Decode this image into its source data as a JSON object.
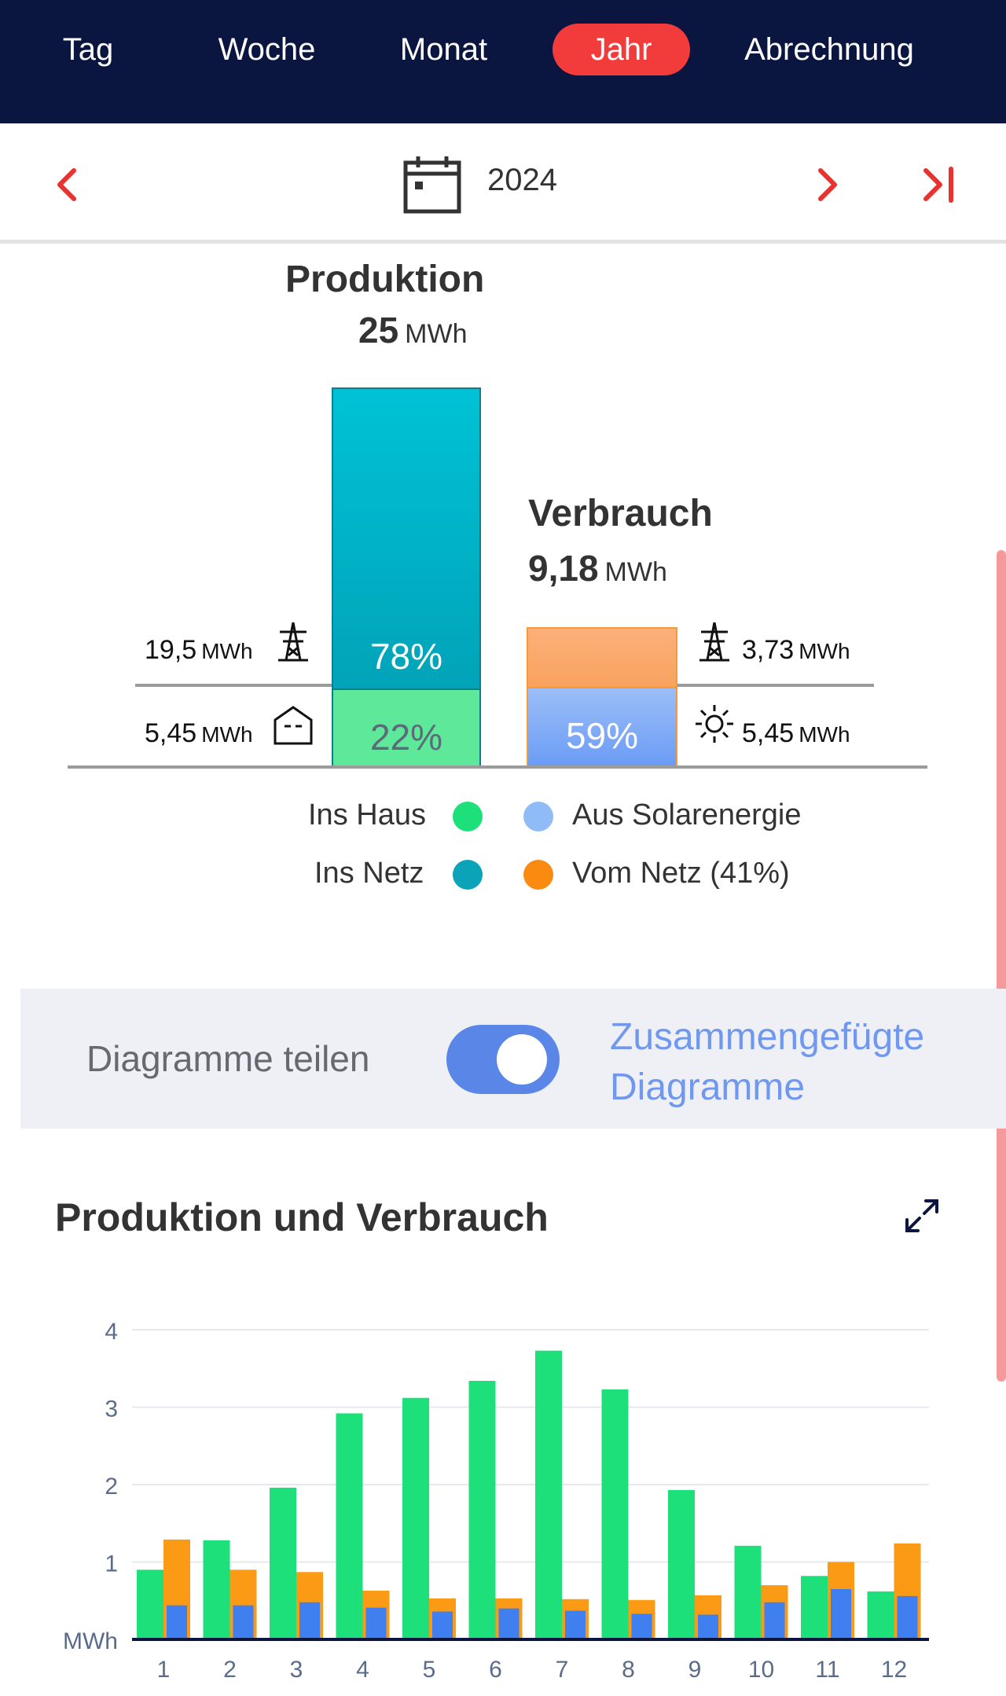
{
  "tabs": [
    {
      "label": "Tag",
      "active": false
    },
    {
      "label": "Woche",
      "active": false
    },
    {
      "label": "Monat",
      "active": false
    },
    {
      "label": "Jahr",
      "active": true
    },
    {
      "label": "Abrechnung",
      "active": false
    }
  ],
  "datebar": {
    "year": "2024",
    "icons": [
      "chevron-left-icon",
      "calendar-icon",
      "chevron-right-icon",
      "skip-to-end-icon"
    ]
  },
  "production": {
    "title": "Produktion",
    "value": "25",
    "unit": "MWh",
    "grid_pct": "78%",
    "house_pct": "22%",
    "grid_share": 0.78,
    "house_share": 0.22,
    "grid_value": "19,5",
    "house_value": "5,45",
    "unit_small": "MWh"
  },
  "consumption": {
    "title": "Verbrauch",
    "value": "9,18",
    "unit": "MWh",
    "solar_pct": "59%",
    "solar_share": 0.59,
    "grid_share": 0.41,
    "grid_value": "3,73",
    "solar_value": "5,45",
    "unit_small": "MWh"
  },
  "legend": {
    "ins_haus": "Ins Haus",
    "ins_netz": "Ins Netz",
    "aus_solar": "Aus Solarenergie",
    "vom_netz": "Vom Netz (41%)"
  },
  "toggle": {
    "label": "Diagramme teilen",
    "state": true,
    "right_line1": "Zusammengefügte",
    "right_line2": "Diagramme"
  },
  "chart_section": {
    "title": "Produktion und Verbrauch"
  },
  "colors": {
    "nav_bg": "#0b1640",
    "active_tab": "#f23b3b",
    "production_top": "#00c2d6",
    "production_bottom": "#01a3b8",
    "house_green": "#5ee89a",
    "consumption_orange": "#f9a25f",
    "consumption_blue": "#6b9cf5",
    "bar_green": "#1ee07a",
    "bar_orange": "#fb9a14",
    "bar_blue": "#3f7ff0",
    "toggle": "#5a86e8",
    "accent_red": "#e8332e"
  },
  "chart_data": {
    "type": "bar",
    "title": "",
    "xlabel": "",
    "ylabel": "MWh",
    "ylim": [
      0,
      4
    ],
    "yticks": [
      1,
      2,
      3,
      4
    ],
    "categories": [
      "1",
      "2",
      "3",
      "4",
      "5",
      "6",
      "7",
      "8",
      "9",
      "10",
      "11",
      "12"
    ],
    "series": [
      {
        "values": [
          0.9,
          1.28,
          1.96,
          2.92,
          3.12,
          3.34,
          3.73,
          3.23,
          1.93,
          1.21,
          0.82,
          0.62
        ]
      },
      {
        "values": [
          1.29,
          0.9,
          0.87,
          0.63,
          0.53,
          0.53,
          0.52,
          0.51,
          0.57,
          0.7,
          1.0,
          1.24
        ]
      },
      {
        "values": [
          0.44,
          0.44,
          0.48,
          0.41,
          0.36,
          0.4,
          0.37,
          0.33,
          0.32,
          0.48,
          0.65,
          0.56
        ]
      }
    ]
  }
}
